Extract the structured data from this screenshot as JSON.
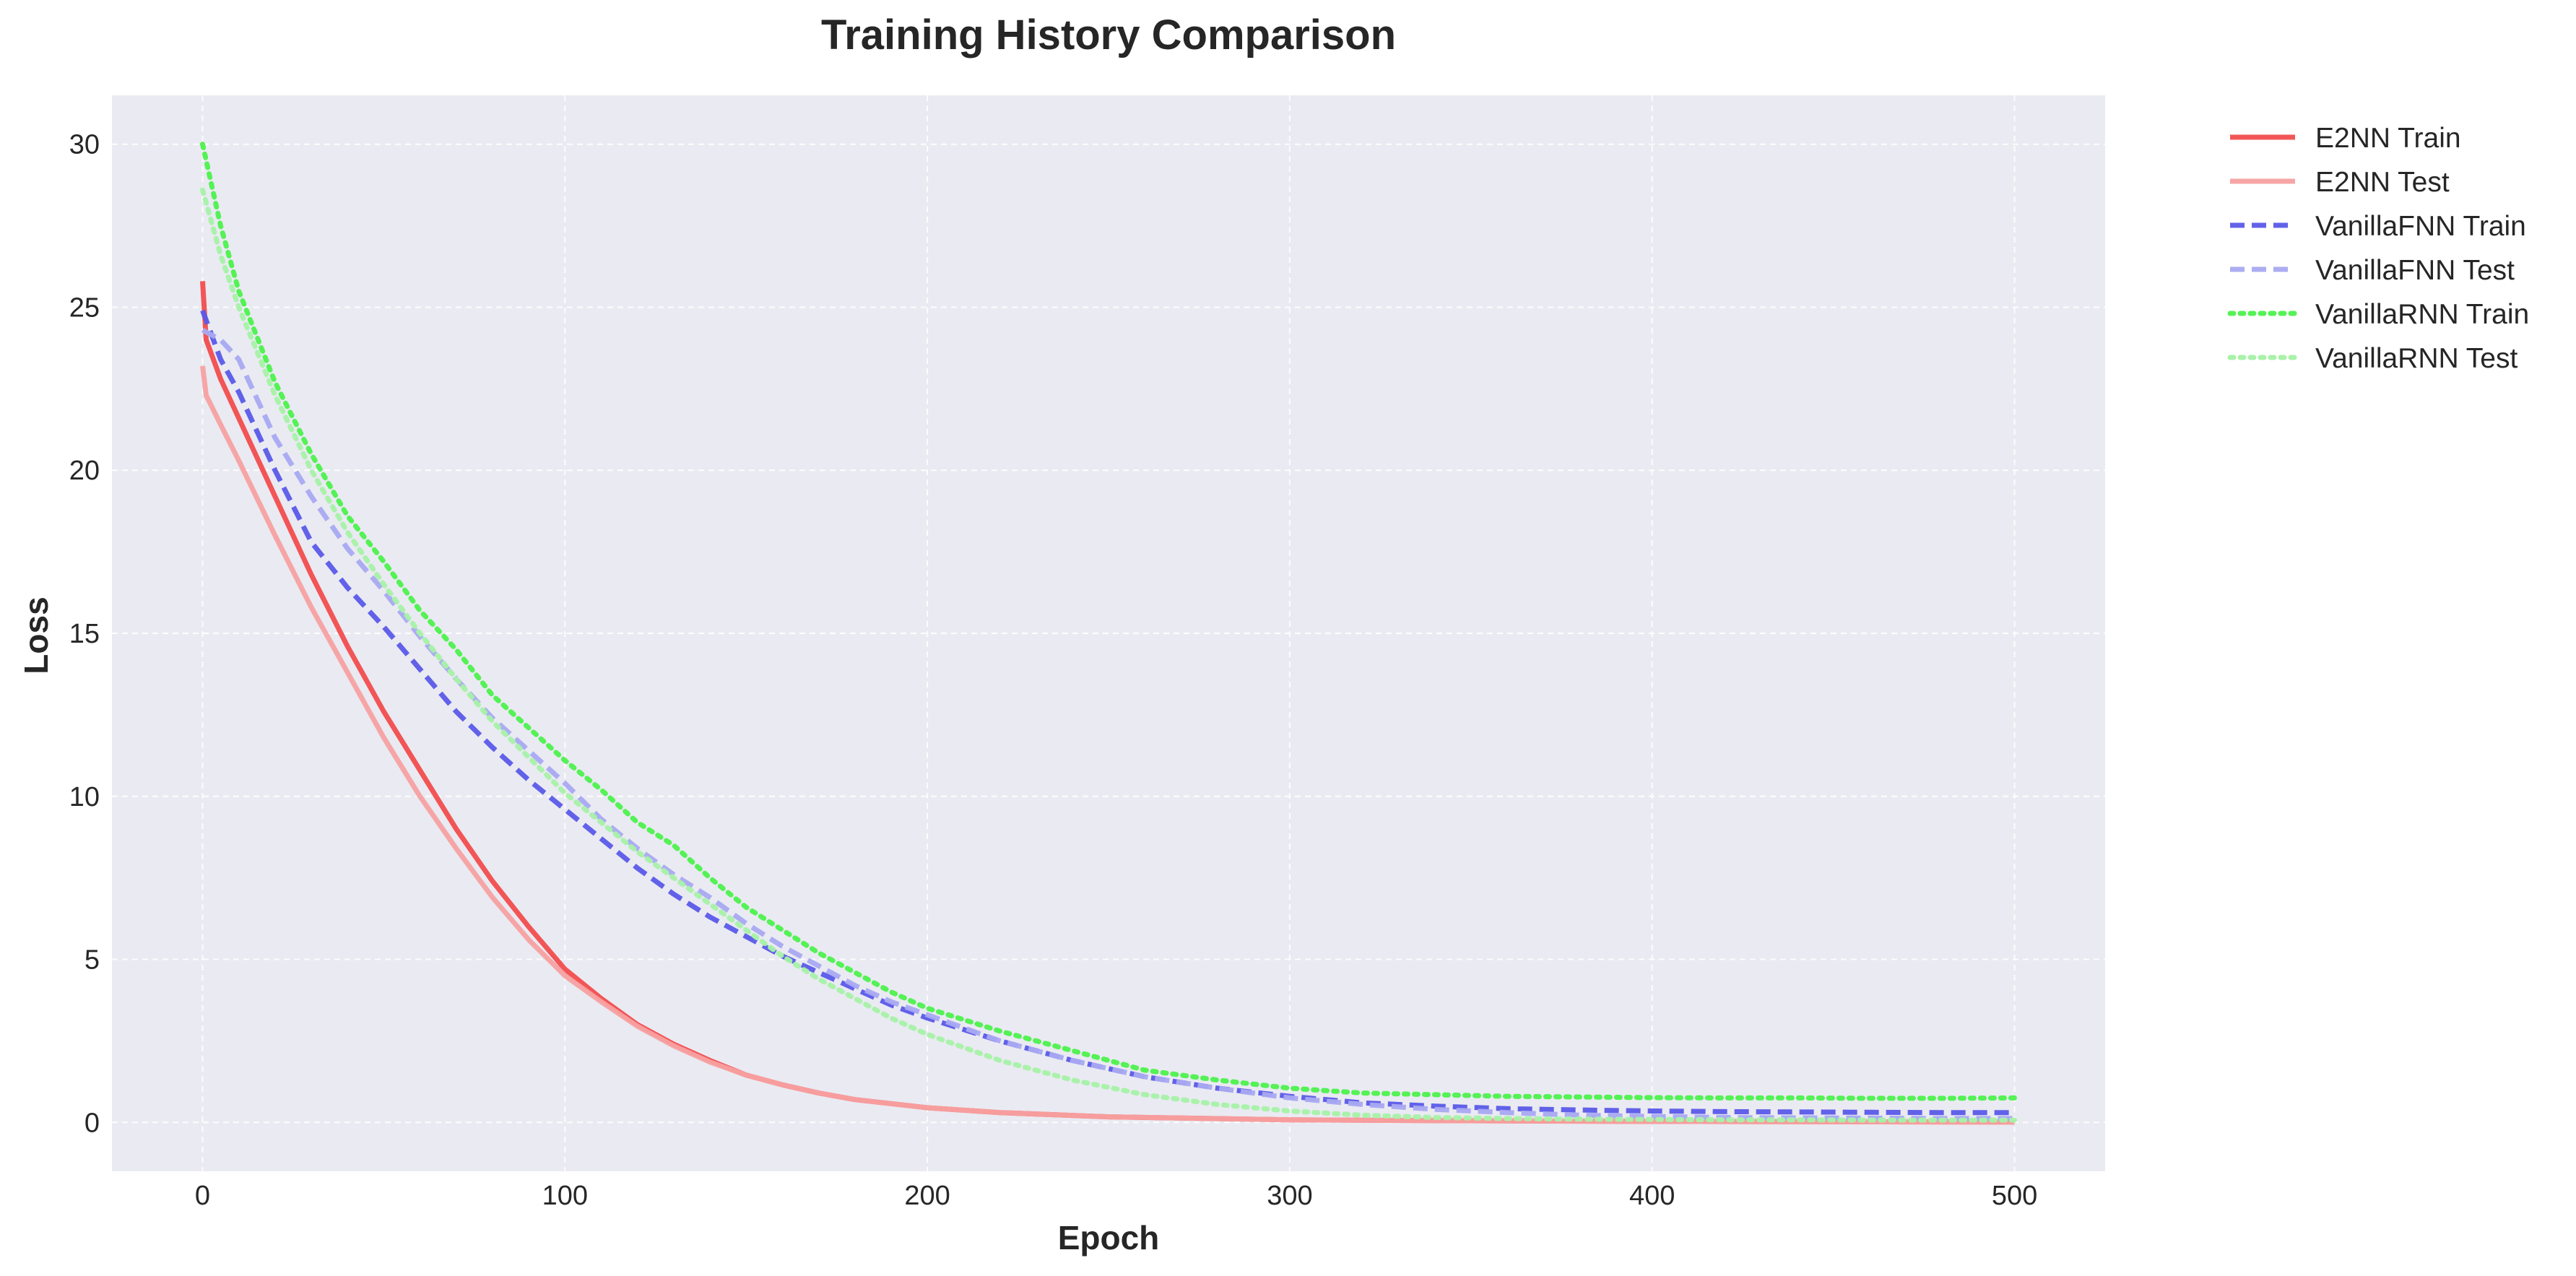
{
  "chart_data": {
    "type": "line",
    "title": "Training History Comparison",
    "xlabel": "Epoch",
    "ylabel": "Loss",
    "xlim": [
      -25,
      525
    ],
    "ylim": [
      -1.5,
      31.5
    ],
    "xticks": [
      0,
      100,
      200,
      300,
      400,
      500
    ],
    "yticks": [
      0,
      5,
      10,
      15,
      20,
      25,
      30
    ],
    "grid": true,
    "legend_position": "outside-top-right",
    "background": "#EAEAF2",
    "series": [
      {
        "name": "E2NN Train",
        "color": "#F24D4D",
        "style": "solid",
        "opacity": 0.95,
        "x": [
          0,
          1,
          5,
          10,
          20,
          30,
          40,
          50,
          60,
          70,
          80,
          90,
          100,
          110,
          120,
          130,
          140,
          150,
          160,
          170,
          180,
          200,
          220,
          250,
          300,
          350,
          400,
          450,
          500
        ],
        "y": [
          25.8,
          24.0,
          22.8,
          21.6,
          19.2,
          16.8,
          14.6,
          12.6,
          10.8,
          9.0,
          7.4,
          6.0,
          4.7,
          3.8,
          3.0,
          2.4,
          1.9,
          1.45,
          1.15,
          0.9,
          0.7,
          0.45,
          0.3,
          0.17,
          0.08,
          0.05,
          0.03,
          0.02,
          0.01
        ]
      },
      {
        "name": "E2NN Test",
        "color": "#F7A1A1",
        "style": "solid",
        "opacity": 0.95,
        "x": [
          0,
          1,
          5,
          10,
          20,
          30,
          40,
          50,
          60,
          70,
          80,
          90,
          100,
          110,
          120,
          130,
          140,
          150,
          160,
          170,
          180,
          200,
          220,
          250,
          300,
          350,
          400,
          450,
          500
        ],
        "y": [
          23.2,
          22.3,
          21.4,
          20.3,
          18.0,
          15.8,
          13.8,
          11.8,
          10.0,
          8.4,
          6.9,
          5.6,
          4.5,
          3.7,
          2.95,
          2.35,
          1.85,
          1.45,
          1.15,
          0.9,
          0.7,
          0.45,
          0.3,
          0.17,
          0.08,
          0.05,
          0.03,
          0.02,
          0.01
        ]
      },
      {
        "name": "VanillaFNN Train",
        "color": "#5A5AE8",
        "style": "dashed",
        "opacity": 0.95,
        "x": [
          0,
          5,
          10,
          20,
          30,
          40,
          50,
          60,
          70,
          80,
          90,
          100,
          110,
          120,
          130,
          140,
          150,
          160,
          170,
          180,
          190,
          200,
          220,
          240,
          260,
          280,
          300,
          320,
          340,
          360,
          380,
          400,
          420,
          440,
          460,
          480,
          500
        ],
        "y": [
          24.9,
          23.4,
          22.4,
          20.0,
          17.8,
          16.4,
          15.2,
          13.9,
          12.6,
          11.5,
          10.5,
          9.6,
          8.7,
          7.8,
          7.0,
          6.3,
          5.7,
          5.1,
          4.6,
          4.1,
          3.6,
          3.2,
          2.5,
          1.9,
          1.4,
          1.05,
          0.8,
          0.6,
          0.5,
          0.42,
          0.38,
          0.35,
          0.33,
          0.32,
          0.31,
          0.3,
          0.3
        ]
      },
      {
        "name": "VanillaFNN Test",
        "color": "#A9A9F2",
        "style": "dashed",
        "opacity": 0.95,
        "x": [
          0,
          5,
          10,
          20,
          30,
          40,
          50,
          60,
          70,
          80,
          90,
          100,
          110,
          120,
          130,
          140,
          150,
          160,
          170,
          180,
          190,
          200,
          220,
          240,
          260,
          280,
          300,
          320,
          340,
          360,
          380,
          400,
          420,
          440,
          460,
          480,
          500
        ],
        "y": [
          24.3,
          24.0,
          23.4,
          21.0,
          19.2,
          17.6,
          16.3,
          14.9,
          13.6,
          12.4,
          11.4,
          10.4,
          9.3,
          8.4,
          7.6,
          6.9,
          6.1,
          5.4,
          4.8,
          4.2,
          3.7,
          3.3,
          2.5,
          1.9,
          1.4,
          1.05,
          0.75,
          0.55,
          0.4,
          0.3,
          0.22,
          0.18,
          0.15,
          0.14,
          0.13,
          0.12,
          0.12
        ]
      },
      {
        "name": "VanillaRNN Train",
        "color": "#4CF24C",
        "style": "dotted",
        "opacity": 0.95,
        "x": [
          0,
          5,
          10,
          20,
          30,
          40,
          50,
          60,
          70,
          80,
          90,
          100,
          110,
          120,
          130,
          140,
          150,
          160,
          170,
          180,
          190,
          200,
          220,
          240,
          260,
          280,
          300,
          320,
          340,
          360,
          380,
          400,
          420,
          440,
          460,
          480,
          500
        ],
        "y": [
          30.0,
          27.5,
          25.5,
          22.7,
          20.5,
          18.6,
          17.2,
          15.7,
          14.5,
          13.1,
          12.1,
          11.1,
          10.2,
          9.2,
          8.5,
          7.5,
          6.6,
          5.9,
          5.2,
          4.6,
          4.0,
          3.5,
          2.8,
          2.2,
          1.6,
          1.3,
          1.05,
          0.9,
          0.85,
          0.8,
          0.78,
          0.76,
          0.75,
          0.75,
          0.74,
          0.74,
          0.75
        ]
      },
      {
        "name": "VanillaRNN Test",
        "color": "#A6F2A6",
        "style": "dotted",
        "opacity": 0.95,
        "x": [
          0,
          5,
          10,
          20,
          30,
          40,
          50,
          60,
          70,
          80,
          90,
          100,
          110,
          120,
          130,
          140,
          150,
          160,
          170,
          180,
          190,
          200,
          220,
          240,
          260,
          280,
          300,
          320,
          340,
          360,
          380,
          400,
          420,
          440,
          460,
          480,
          500
        ],
        "y": [
          28.6,
          26.6,
          25.0,
          22.3,
          20.0,
          18.1,
          16.5,
          15.0,
          13.6,
          12.3,
          11.2,
          10.1,
          9.2,
          8.3,
          7.5,
          6.7,
          5.9,
          5.1,
          4.4,
          3.8,
          3.2,
          2.7,
          1.9,
          1.3,
          0.85,
          0.55,
          0.35,
          0.22,
          0.15,
          0.12,
          0.1,
          0.09,
          0.08,
          0.08,
          0.07,
          0.07,
          0.07
        ]
      }
    ]
  }
}
